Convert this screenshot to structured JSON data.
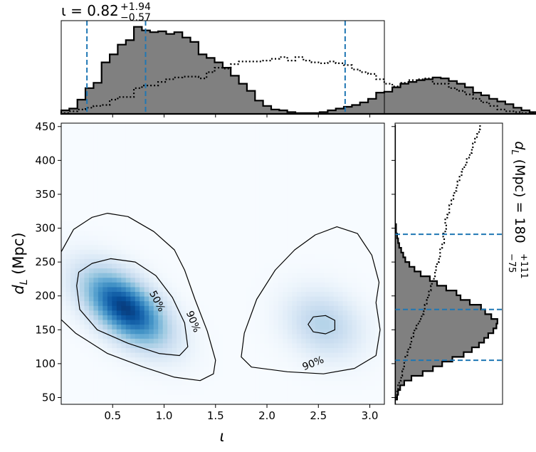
{
  "chart_data": {
    "type": "corner-plot",
    "main": {
      "type": "heatmap",
      "xlabel": "ι",
      "ylabel": "d_L (Mpc)",
      "ylabel_parts": {
        "main": "d",
        "sub": "L",
        "rest": " (Mpc)"
      },
      "xlim": [
        0.0,
        3.14159
      ],
      "ylim": [
        40,
        455
      ],
      "xticks": [
        0.5,
        1.0,
        1.5,
        2.0,
        2.5,
        3.0
      ],
      "xtick_labels": [
        "0.5",
        "1.0",
        "1.5",
        "2.0",
        "2.5",
        "3.0"
      ],
      "yticks": [
        50,
        100,
        150,
        200,
        250,
        300,
        350,
        400,
        450
      ],
      "ytick_labels": [
        "50",
        "100",
        "150",
        "200",
        "250",
        "300",
        "350",
        "400",
        "450"
      ],
      "colormap": "Blues",
      "density_modes": [
        {
          "x": 0.62,
          "y": 182,
          "sx": 0.28,
          "sy": 38,
          "rho": -0.55,
          "weight": 1.0
        },
        {
          "x": 2.55,
          "y": 158,
          "sx": 0.25,
          "sy": 34,
          "rho": -0.2,
          "weight": 0.32
        }
      ],
      "contour_labels": [
        {
          "text": "50%",
          "x": 0.93,
          "y": 192,
          "rotation": 62
        },
        {
          "text": "90%",
          "x": 1.28,
          "y": 162,
          "rotation": 68
        },
        {
          "text": "90%",
          "x": 2.45,
          "y": 100,
          "rotation": -22
        }
      ],
      "contours": [
        {
          "level": "90%",
          "points": [
            [
              0.0,
              165
            ],
            [
              0.14,
              145
            ],
            [
              0.45,
              115
            ],
            [
              0.8,
              95
            ],
            [
              1.1,
              80
            ],
            [
              1.35,
              75
            ],
            [
              1.48,
              85
            ],
            [
              1.5,
              105
            ],
            [
              1.42,
              148
            ],
            [
              1.3,
              195
            ],
            [
              1.2,
              238
            ],
            [
              1.1,
              268
            ],
            [
              0.9,
              295
            ],
            [
              0.65,
              317
            ],
            [
              0.45,
              322
            ],
            [
              0.3,
              316
            ],
            [
              0.12,
              298
            ],
            [
              0.0,
              265
            ]
          ]
        },
        {
          "level": "50%",
          "points": [
            [
              0.15,
              215
            ],
            [
              0.18,
              180
            ],
            [
              0.35,
              150
            ],
            [
              0.65,
              130
            ],
            [
              0.95,
              115
            ],
            [
              1.15,
              112
            ],
            [
              1.23,
              125
            ],
            [
              1.2,
              160
            ],
            [
              1.08,
              198
            ],
            [
              0.92,
              230
            ],
            [
              0.72,
              250
            ],
            [
              0.48,
              255
            ],
            [
              0.3,
              248
            ],
            [
              0.17,
              235
            ]
          ]
        },
        {
          "level": "90%",
          "points": [
            [
              1.75,
              110
            ],
            [
              1.85,
              95
            ],
            [
              2.2,
              88
            ],
            [
              2.55,
              85
            ],
            [
              2.85,
              93
            ],
            [
              3.06,
              112
            ],
            [
              3.1,
              150
            ],
            [
              3.06,
              190
            ],
            [
              3.09,
              220
            ],
            [
              3.02,
              260
            ],
            [
              2.88,
              292
            ],
            [
              2.68,
              302
            ],
            [
              2.47,
              290
            ],
            [
              2.27,
              268
            ],
            [
              2.08,
              238
            ],
            [
              1.9,
              195
            ],
            [
              1.78,
              145
            ]
          ]
        },
        {
          "level": "50%",
          "points": [
            [
              2.4,
              158
            ],
            [
              2.45,
              147
            ],
            [
              2.57,
              144
            ],
            [
              2.66,
              150
            ],
            [
              2.66,
              164
            ],
            [
              2.57,
              171
            ],
            [
              2.45,
              169
            ]
          ]
        }
      ]
    },
    "top": {
      "type": "histogram",
      "param": "ι",
      "label": "ι = 0.82",
      "label_parts": {
        "main": "ι = 0.82",
        "sup": "+1.94",
        "sub": "−0.57"
      },
      "median": 0.82,
      "lower": 0.25,
      "upper": 2.76,
      "bin_edges_start": 0.0,
      "bin_width": 0.0785,
      "solid": [
        0.04,
        0.06,
        0.16,
        0.29,
        0.35,
        0.58,
        0.67,
        0.78,
        0.83,
        0.98,
        0.94,
        0.92,
        0.93,
        0.9,
        0.92,
        0.86,
        0.81,
        0.67,
        0.63,
        0.58,
        0.52,
        0.43,
        0.34,
        0.26,
        0.15,
        0.09,
        0.05,
        0.04,
        0.02,
        0.01,
        0.01,
        0.01,
        0.02,
        0.04,
        0.06,
        0.08,
        0.1,
        0.13,
        0.17,
        0.24,
        0.25,
        0.3,
        0.34,
        0.36,
        0.38,
        0.39,
        0.41,
        0.4,
        0.37,
        0.34,
        0.3,
        0.24,
        0.21,
        0.17,
        0.14,
        0.11,
        0.07,
        0.04,
        0.02,
        0.01
      ],
      "dotted": [
        0.01,
        0.03,
        0.05,
        0.07,
        0.09,
        0.1,
        0.16,
        0.19,
        0.19,
        0.29,
        0.32,
        0.32,
        0.36,
        0.39,
        0.41,
        0.42,
        0.42,
        0.4,
        0.47,
        0.52,
        0.51,
        0.56,
        0.59,
        0.59,
        0.59,
        0.6,
        0.62,
        0.64,
        0.6,
        0.64,
        0.6,
        0.58,
        0.57,
        0.59,
        0.57,
        0.55,
        0.5,
        0.47,
        0.45,
        0.39,
        0.34,
        0.31,
        0.35,
        0.38,
        0.39,
        0.4,
        0.34,
        0.34,
        0.29,
        0.26,
        0.22,
        0.17,
        0.13,
        0.09,
        0.05,
        0.03,
        0.02,
        0.01,
        0.01,
        0.0
      ]
    },
    "right": {
      "type": "histogram",
      "orientation": "horizontal",
      "param": "d_L (Mpc)",
      "label": "d_L (Mpc) = 180",
      "label_parts": {
        "main": "d",
        "sub": "L",
        "rest": " (Mpc) = 180",
        "sup": "+111",
        "lsub": "−75"
      },
      "median": 180,
      "lower": 105,
      "upper": 291,
      "bin_edges_start": 40,
      "bin_width": 7.0,
      "solid": [
        0.0,
        0.02,
        0.03,
        0.05,
        0.09,
        0.16,
        0.27,
        0.37,
        0.46,
        0.56,
        0.67,
        0.75,
        0.82,
        0.87,
        0.91,
        0.96,
        0.99,
        1.0,
        0.94,
        0.88,
        0.84,
        0.73,
        0.64,
        0.6,
        0.5,
        0.41,
        0.34,
        0.25,
        0.19,
        0.14,
        0.1,
        0.08,
        0.06,
        0.04,
        0.03,
        0.02,
        0.01,
        0.01,
        0.0,
        0.0,
        0.0,
        0.0,
        0.0,
        0.0,
        0.0,
        0.0,
        0.0,
        0.0,
        0.0,
        0.0,
        0.0,
        0.0,
        0.0,
        0.0,
        0.0,
        0.0,
        0.0,
        0.0,
        0.0
      ],
      "dotted": [
        0.0,
        0.01,
        0.02,
        0.03,
        0.04,
        0.06,
        0.07,
        0.08,
        0.09,
        0.1,
        0.12,
        0.13,
        0.15,
        0.16,
        0.18,
        0.19,
        0.21,
        0.24,
        0.26,
        0.28,
        0.29,
        0.31,
        0.32,
        0.33,
        0.35,
        0.36,
        0.38,
        0.39,
        0.4,
        0.41,
        0.43,
        0.44,
        0.44,
        0.46,
        0.48,
        0.47,
        0.49,
        0.5,
        0.49,
        0.51,
        0.53,
        0.53,
        0.55,
        0.57,
        0.58,
        0.6,
        0.61,
        0.63,
        0.65,
        0.66,
        0.69,
        0.7,
        0.73,
        0.75,
        0.76,
        0.78,
        0.8,
        0.82,
        0.83
      ]
    },
    "colors": {
      "hist_fill": "#808080",
      "hist_line": "#000000",
      "quantile_line": "#1f77b4",
      "contour_line": "#000000"
    }
  }
}
